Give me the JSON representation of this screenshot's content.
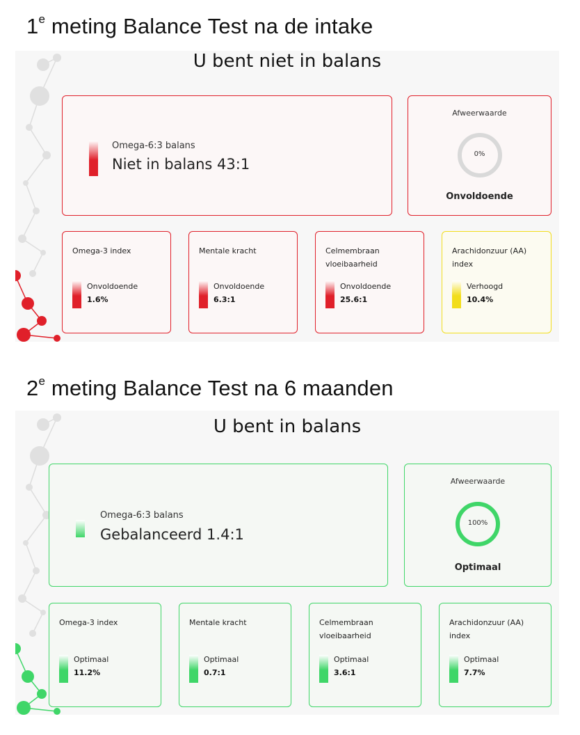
{
  "measurements": [
    {
      "heading": "1",
      "heading_sup": "e",
      "heading_rest": " meting Balance Test na de intake",
      "title": "U bent niet in balans",
      "main": {
        "label": "Omega-6:3 balans",
        "value": "Niet in balans 43:1"
      },
      "afweer": {
        "label": "Afweerwaarde",
        "percent": "0%",
        "fraction": 0,
        "status": "Onvoldoende"
      },
      "cards": [
        {
          "title": "Omega-3 index",
          "status": "Onvoldoende",
          "value": "1.6%",
          "color": "red"
        },
        {
          "title": "Mentale kracht",
          "status": "Onvoldoende",
          "value": "6.3:1",
          "color": "red"
        },
        {
          "title": "Celmembraan vloeibaarheid",
          "status": "Onvoldoende",
          "value": "25.6:1",
          "color": "red"
        },
        {
          "title": "Arachidonzuur (AA) index",
          "status": "Verhoogd",
          "value": "10.4%",
          "color": "yellow"
        }
      ]
    },
    {
      "heading": "2",
      "heading_sup": "e",
      "heading_rest": " meting Balance Test na 6 maanden",
      "title": "U bent in balans",
      "main": {
        "label": "Omega-6:3 balans",
        "value": "Gebalanceerd 1.4:1"
      },
      "afweer": {
        "label": "Afweerwaarde",
        "percent": "100%",
        "fraction": 1,
        "status": "Optimaal"
      },
      "cards": [
        {
          "title": "Omega-3 index",
          "status": "Optimaal",
          "value": "11.2%",
          "color": "green"
        },
        {
          "title": "Mentale kracht",
          "status": "Optimaal",
          "value": "0.7:1",
          "color": "green"
        },
        {
          "title": "Celmembraan vloeibaarheid",
          "status": "Optimaal",
          "value": "3.6:1",
          "color": "green"
        },
        {
          "title": "Arachidonzuur (AA) index",
          "status": "Optimaal",
          "value": "7.7%",
          "color": "green"
        }
      ]
    }
  ],
  "colors": {
    "red": "#e0202a",
    "green": "#3fd668",
    "yellow": "#f2dd1a",
    "gauge_empty": "#d9d9d9"
  }
}
